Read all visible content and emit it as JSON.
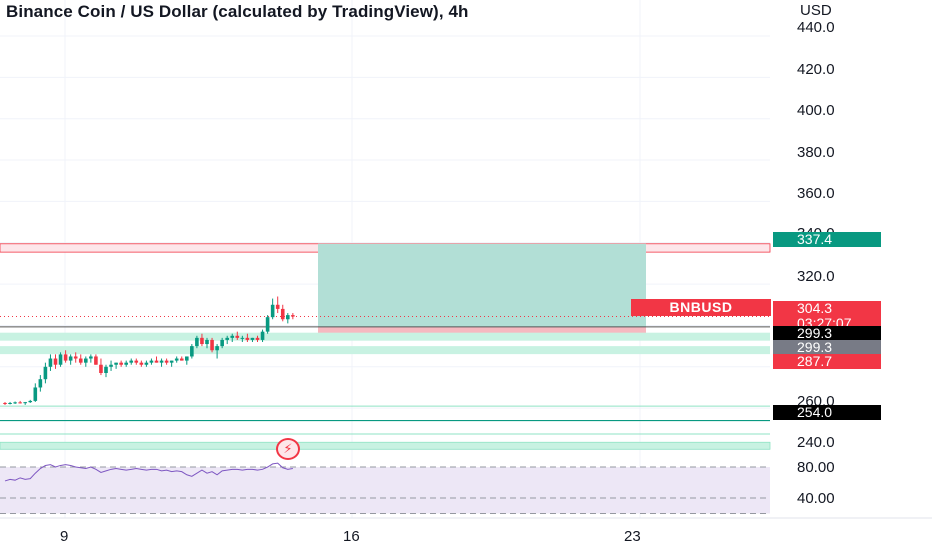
{
  "chart": {
    "title": "Binance Coin / US Dollar (calculated by TradingView), 4h",
    "currency": "USD",
    "symbol_tag": "BNBUSD",
    "colors": {
      "up": "#089981",
      "down": "#f23645",
      "zone_green": "#a5e8cd",
      "zone_red": "#f6b9c0",
      "rsi_bg": "#ede7f6"
    }
  },
  "price_axis": {
    "ticks": [
      "440.0",
      "420.0",
      "400.0",
      "380.0",
      "360.0",
      "340.0",
      "320.0",
      "260.0",
      "240.0"
    ],
    "badges": {
      "target": "337.4",
      "last_price": "304.3",
      "countdown": "03:27:07",
      "entry": "299.3",
      "entry2": "299.3",
      "stop": "287.7",
      "support": "254.0"
    }
  },
  "rsi_axis": {
    "ticks": [
      "80.00",
      "40.00"
    ]
  },
  "time_axis": {
    "ticks": [
      "9",
      "16",
      "23"
    ]
  },
  "icons": {
    "event": "lightning-icon"
  },
  "chart_data": {
    "type": "candlestick",
    "levels": {
      "target": 337.4,
      "last": 304.3,
      "entry": 299.3,
      "stop": 287.7,
      "support": 254.0
    },
    "candles": [
      [
        262.5,
        263,
        261.5,
        262.2
      ],
      [
        262.2,
        263,
        261.8,
        262.5
      ],
      [
        262.5,
        263.2,
        262,
        262.8
      ],
      [
        262.8,
        263.5,
        262.2,
        262.4
      ],
      [
        262.4,
        263,
        261.6,
        262.9
      ],
      [
        262.9,
        264,
        262.5,
        263.5
      ],
      [
        263.5,
        272,
        263,
        270
      ],
      [
        270,
        276,
        268,
        274
      ],
      [
        274,
        282,
        272,
        280
      ],
      [
        280,
        286,
        278,
        284
      ],
      [
        284,
        286,
        279,
        281
      ],
      [
        281,
        287,
        280,
        286
      ],
      [
        286,
        288,
        282,
        283
      ],
      [
        283,
        286,
        281,
        285
      ],
      [
        285,
        287,
        282,
        284
      ],
      [
        284,
        286,
        281,
        282
      ],
      [
        282,
        285,
        280,
        284
      ],
      [
        284,
        286,
        282,
        285
      ],
      [
        285,
        286,
        281,
        281
      ],
      [
        281,
        284,
        276,
        277
      ],
      [
        277,
        281,
        275,
        280
      ],
      [
        280,
        283,
        278,
        281
      ],
      [
        281,
        282,
        279,
        282
      ],
      [
        282,
        283,
        280,
        281
      ],
      [
        281,
        283,
        280,
        282
      ],
      [
        282,
        284,
        281,
        283
      ],
      [
        283,
        284,
        281,
        282
      ],
      [
        282,
        283,
        280,
        281
      ],
      [
        281,
        283,
        280,
        282
      ],
      [
        282,
        284,
        281,
        283
      ],
      [
        283,
        285,
        282,
        282
      ],
      [
        282,
        284,
        280,
        283
      ],
      [
        283,
        284,
        281,
        282
      ],
      [
        282,
        283,
        280,
        283
      ],
      [
        283,
        285,
        282,
        284
      ],
      [
        284,
        285,
        283,
        283
      ],
      [
        283,
        285,
        281,
        285
      ],
      [
        285,
        291,
        284,
        290
      ],
      [
        290,
        295,
        289,
        294
      ],
      [
        294,
        296,
        290,
        291
      ],
      [
        291,
        294,
        289,
        293
      ],
      [
        293,
        294,
        287,
        288
      ],
      [
        288,
        291,
        284,
        290
      ],
      [
        290,
        294,
        289,
        293
      ],
      [
        293,
        295,
        291,
        294
      ],
      [
        294,
        296,
        292,
        295
      ],
      [
        295,
        297,
        293,
        294
      ],
      [
        294,
        295,
        292,
        294
      ],
      [
        294,
        296,
        292,
        293
      ],
      [
        293,
        294,
        292,
        294
      ],
      [
        294,
        295,
        292,
        293
      ],
      [
        293,
        298,
        292,
        297
      ],
      [
        297,
        305,
        296,
        304
      ],
      [
        304,
        313,
        303,
        310
      ],
      [
        310,
        314,
        306,
        308
      ],
      [
        308,
        310,
        302,
        303
      ],
      [
        303,
        306,
        301,
        305
      ],
      [
        305,
        306,
        303,
        304.3
      ]
    ],
    "rsi": [
      62,
      64,
      63,
      66,
      64,
      65,
      72,
      78,
      82,
      83,
      80,
      82,
      83,
      82,
      80,
      79,
      78,
      80,
      77,
      73,
      75,
      77,
      78,
      77,
      76,
      77,
      78,
      77,
      76,
      77,
      77,
      75,
      76,
      74,
      75,
      74,
      70,
      68,
      72,
      76,
      72,
      74,
      70,
      75,
      76,
      77,
      77,
      76,
      77,
      77,
      76,
      77,
      80,
      84,
      85,
      79,
      77,
      78
    ]
  }
}
